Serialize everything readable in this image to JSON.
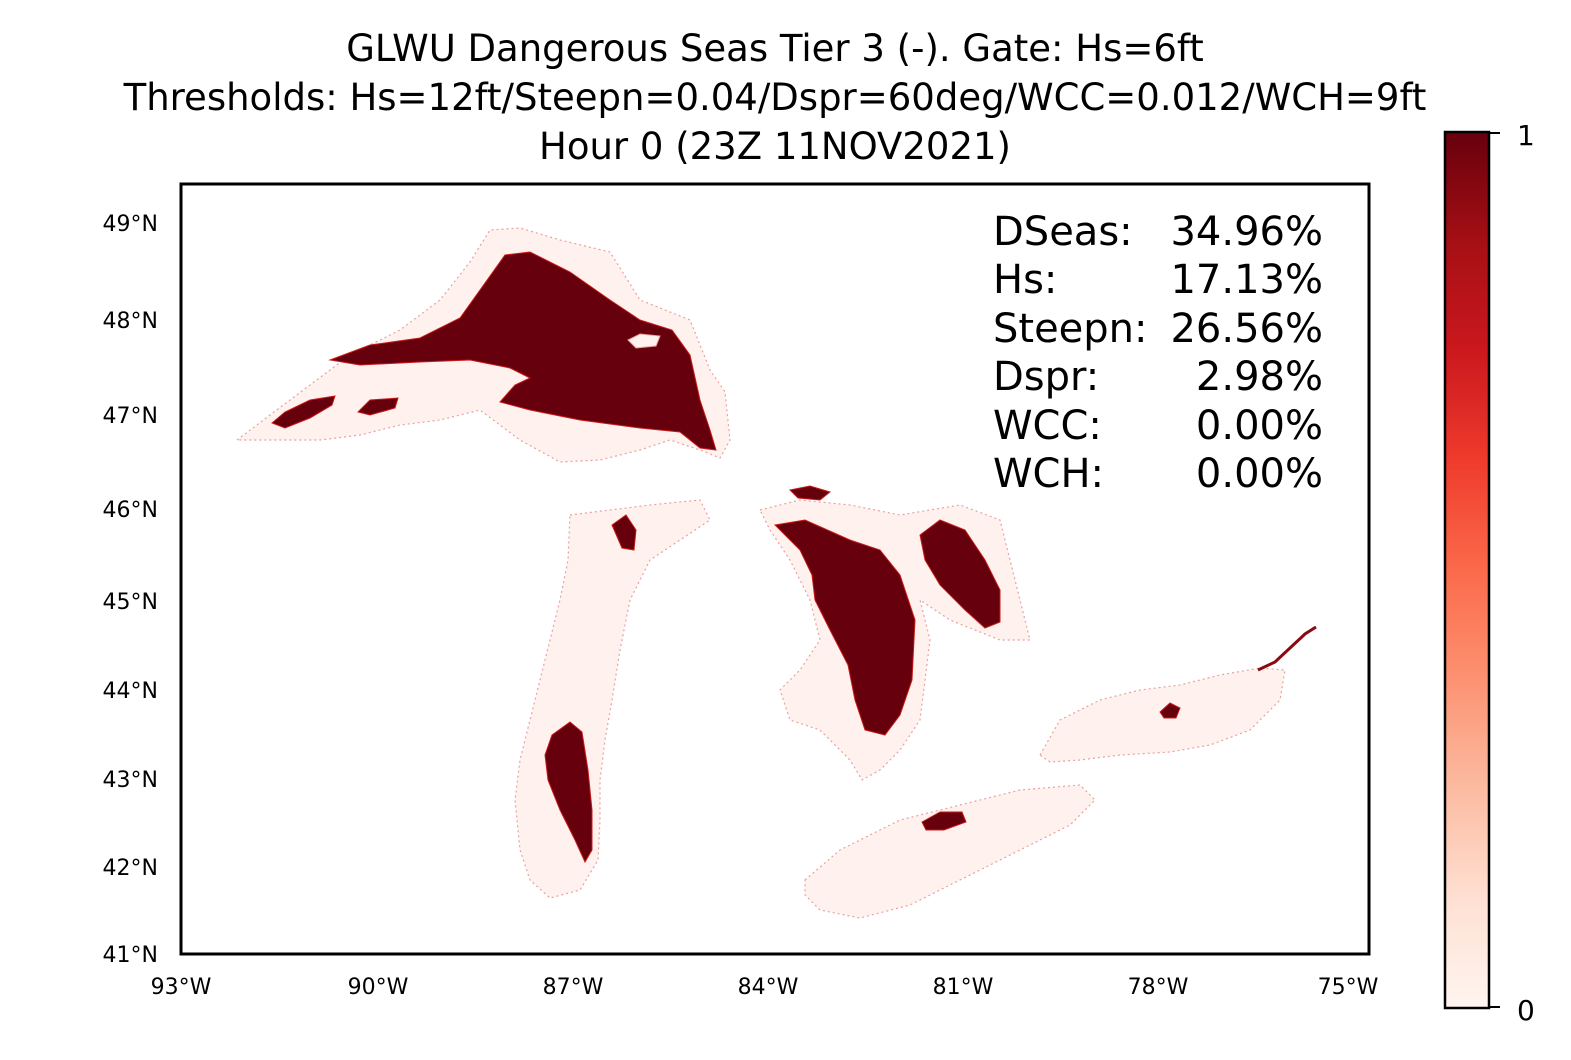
{
  "title": {
    "line1": "GLWU Dangerous Seas Tier 3 (-). Gate: Hs=6ft",
    "line2": "Thresholds: Hs=12ft/Steepn=0.04/Dspr=60deg/WCC=0.012/WCH=9ft",
    "line3": "Hour 0 (23Z 11NOV2021)"
  },
  "stats": [
    {
      "label": "DSeas:",
      "value": "34.96%"
    },
    {
      "label": "Hs:",
      "value": "17.13%"
    },
    {
      "label": "Steepn:",
      "value": "26.56%"
    },
    {
      "label": "Dspr:",
      "value": "2.98%"
    },
    {
      "label": "WCC:",
      "value": "0.00%"
    },
    {
      "label": "WCH:",
      "value": "0.00%"
    }
  ],
  "axes": {
    "lat_ticks": [
      "49°N",
      "48°N",
      "47°N",
      "46°N",
      "45°N",
      "44°N",
      "43°N",
      "42°N",
      "41°N"
    ],
    "lon_ticks": [
      "93°W",
      "90°W",
      "87°W",
      "84°W",
      "81°W",
      "78°W",
      "75°W"
    ]
  },
  "colorbar": {
    "min_label": "0",
    "max_label": "1",
    "colors": [
      "#fff5f0",
      "#fee0d2",
      "#fcbba1",
      "#fc9272",
      "#fb6a4a",
      "#ef3b2c",
      "#cb181d",
      "#a50f15",
      "#67000d"
    ]
  },
  "map": {
    "low_color": "#fff2ee",
    "high_color": "#67000d",
    "edge_color": "#e05050"
  }
}
